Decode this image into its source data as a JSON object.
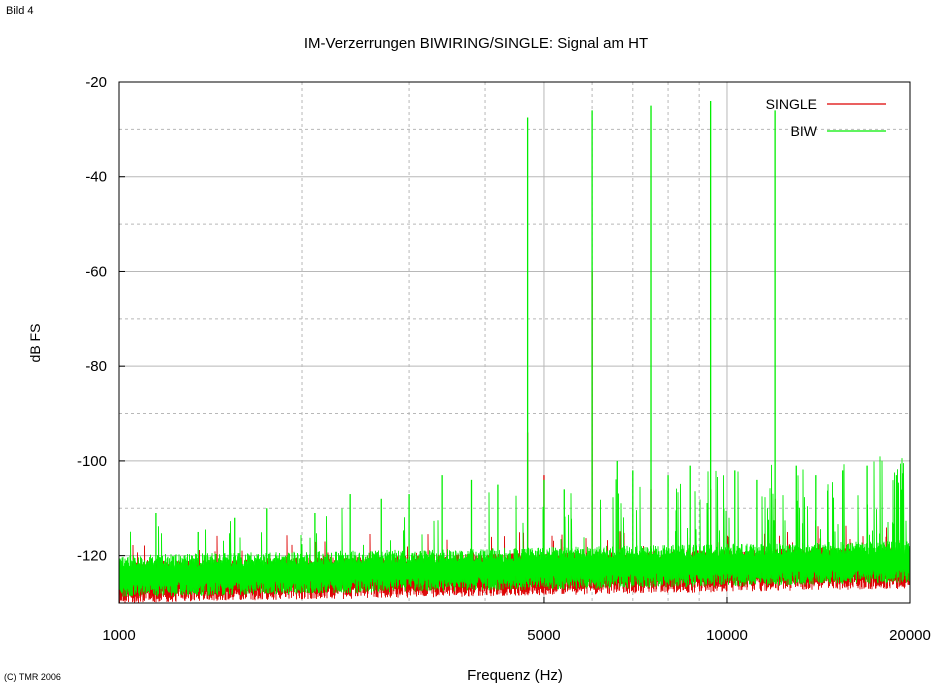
{
  "page": {
    "corner_label": "Bild 4",
    "copyright": "(C) TMR 2006"
  },
  "chart_data": {
    "type": "line",
    "title": "IM-Verzerrungen BIWIRING/SINGLE: Signal am HT",
    "xlabel": "Frequenz (Hz)",
    "ylabel": "dB FS",
    "x_scale": "log",
    "xlim": [
      1000,
      20000
    ],
    "ylim": [
      -130,
      -20
    ],
    "x_ticks": [
      1000,
      5000,
      10000,
      20000
    ],
    "x_tick_labels": [
      "1000",
      "5000",
      "10000",
      "20000"
    ],
    "y_ticks": [
      -20,
      -40,
      -60,
      -80,
      -100,
      -120
    ],
    "y_tick_labels": [
      "-20",
      "-40",
      "-60",
      "-80",
      "-100",
      "-120"
    ],
    "grid": true,
    "legend_position": "top-right",
    "noise_floor_db": -124,
    "series": [
      {
        "name": "SINGLE",
        "color": "#dd0000",
        "peaks": [
          {
            "x": 4700,
            "y": -94
          },
          {
            "x": 5000,
            "y": -103
          },
          {
            "x": 6000,
            "y": -60
          },
          {
            "x": 7500,
            "y": -106
          },
          {
            "x": 9400,
            "y": -106
          },
          {
            "x": 12000,
            "y": -108
          }
        ]
      },
      {
        "name": "BIW",
        "color": "#00ee00",
        "peaks": [
          {
            "x": 1150,
            "y": -111
          },
          {
            "x": 1350,
            "y": -115
          },
          {
            "x": 1550,
            "y": -112
          },
          {
            "x": 1750,
            "y": -110
          },
          {
            "x": 2100,
            "y": -111
          },
          {
            "x": 2400,
            "y": -107
          },
          {
            "x": 2700,
            "y": -108
          },
          {
            "x": 3000,
            "y": -107
          },
          {
            "x": 3400,
            "y": -103
          },
          {
            "x": 3800,
            "y": -104
          },
          {
            "x": 4200,
            "y": -105
          },
          {
            "x": 4700,
            "y": -27.5
          },
          {
            "x": 5000,
            "y": -104
          },
          {
            "x": 5400,
            "y": -106
          },
          {
            "x": 6000,
            "y": -26
          },
          {
            "x": 6600,
            "y": -100
          },
          {
            "x": 7000,
            "y": -102
          },
          {
            "x": 7500,
            "y": -25
          },
          {
            "x": 8000,
            "y": -103
          },
          {
            "x": 8700,
            "y": -101
          },
          {
            "x": 9400,
            "y": -24
          },
          {
            "x": 10300,
            "y": -102
          },
          {
            "x": 11200,
            "y": -104
          },
          {
            "x": 12000,
            "y": -26
          },
          {
            "x": 13000,
            "y": -101
          },
          {
            "x": 14000,
            "y": -103
          },
          {
            "x": 15500,
            "y": -102
          },
          {
            "x": 17000,
            "y": -101
          },
          {
            "x": 19000,
            "y": -103
          }
        ]
      }
    ]
  }
}
